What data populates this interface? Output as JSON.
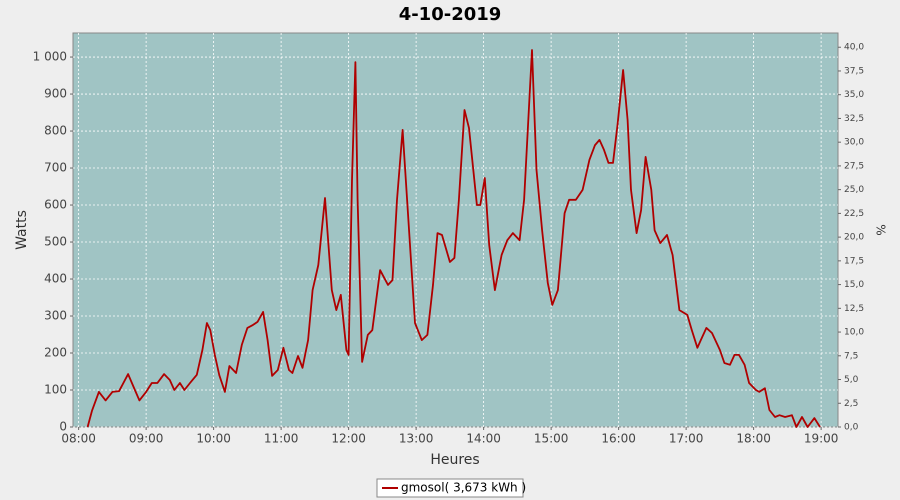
{
  "chart_data": {
    "type": "line",
    "title": "4-10-2019",
    "x_label": "Heures",
    "y_label": "Watts",
    "y2_label": "%",
    "x": [
      "08:08",
      "08:12",
      "08:18",
      "08:24",
      "08:30",
      "08:36",
      "08:44",
      "08:50",
      "08:54",
      "09:00",
      "09:05",
      "09:10",
      "09:16",
      "09:21",
      "09:25",
      "09:30",
      "09:34",
      "09:39",
      "09:45",
      "09:50",
      "09:54",
      "09:57",
      "10:01",
      "10:05",
      "10:10",
      "10:14",
      "10:20",
      "10:25",
      "10:30",
      "10:35",
      "10:39",
      "10:44",
      "10:48",
      "10:52",
      "10:57",
      "11:02",
      "11:07",
      "11:10",
      "11:15",
      "11:19",
      "11:24",
      "11:28",
      "11:33",
      "11:39",
      "11:45",
      "11:49",
      "11:53",
      "11:58",
      "12:00",
      "12:03",
      "12:06",
      "12:08",
      "12:12",
      "12:17",
      "12:21",
      "12:28",
      "12:35",
      "12:39",
      "12:43",
      "12:48",
      "12:52",
      "12:59",
      "13:05",
      "13:10",
      "13:15",
      "13:19",
      "13:23",
      "13:30",
      "13:34",
      "13:38",
      "13:43",
      "13:47",
      "13:54",
      "13:57",
      "14:01",
      "14:05",
      "14:10",
      "14:16",
      "14:21",
      "14:26",
      "14:32",
      "14:36",
      "14:43",
      "14:47",
      "14:52",
      "14:57",
      "15:01",
      "15:06",
      "15:12",
      "15:16",
      "15:22",
      "15:28",
      "15:34",
      "15:39",
      "15:43",
      "15:47",
      "15:51",
      "15:55",
      "15:59",
      "16:04",
      "16:08",
      "16:11",
      "16:16",
      "16:20",
      "16:24",
      "16:29",
      "16:32",
      "16:37",
      "16:43",
      "16:48",
      "16:54",
      "17:01",
      "17:05",
      "17:10",
      "17:13",
      "17:18",
      "17:23",
      "17:30",
      "17:34",
      "17:39",
      "17:43",
      "17:47",
      "17:52",
      "17:56",
      "18:02",
      "18:05",
      "18:10",
      "18:14",
      "18:19",
      "18:23",
      "18:28",
      "18:34",
      "18:38",
      "18:43",
      "18:48",
      "18:54",
      "18:59"
    ],
    "series": [
      {
        "name": "gmosol( 3,673 kWh )",
        "color": "#b00000",
        "values": [
          0,
          45,
          95,
          72,
          95,
          97,
          143,
          100,
          72,
          95,
          119,
          119,
          143,
          127,
          100,
          119,
          100,
          119,
          141,
          208,
          281,
          262,
          195,
          140,
          95,
          165,
          146,
          222,
          268,
          276,
          284,
          311,
          235,
          138,
          154,
          214,
          154,
          146,
          192,
          160,
          235,
          370,
          438,
          619,
          370,
          316,
          357,
          208,
          195,
          668,
          986,
          614,
          176,
          249,
          262,
          424,
          384,
          397,
          614,
          803,
          614,
          281,
          235,
          249,
          384,
          524,
          519,
          446,
          457,
          614,
          857,
          808,
          600,
          600,
          673,
          492,
          370,
          465,
          505,
          524,
          505,
          614,
          1019,
          695,
          532,
          389,
          330,
          370,
          578,
          614,
          614,
          641,
          722,
          762,
          776,
          749,
          714,
          714,
          816,
          965,
          830,
          641,
          524,
          586,
          730,
          641,
          532,
          497,
          519,
          465,
          316,
          303,
          262,
          214,
          235,
          268,
          254,
          208,
          173,
          168,
          195,
          195,
          168,
          119,
          100,
          95,
          105,
          46,
          27,
          32,
          27,
          32,
          0,
          27,
          0,
          24,
          0
        ]
      }
    ],
    "xlim": [
      "07:55",
      "19:15"
    ],
    "xticks": [
      "08:00",
      "09:00",
      "10:00",
      "11:00",
      "12:00",
      "13:00",
      "14:00",
      "15:00",
      "16:00",
      "17:00",
      "18:00",
      "19:00"
    ],
    "ylim": [
      0,
      1065
    ],
    "yticks": [
      0,
      100,
      200,
      300,
      400,
      500,
      600,
      700,
      800,
      900,
      {
        "value": 1000,
        "label": "1 000"
      }
    ],
    "y2lim": [
      0,
      41.5
    ],
    "y2ticks": [
      {
        "value": 0,
        "label": "0,0"
      },
      {
        "value": 2.5,
        "label": "2,5"
      },
      {
        "value": 5,
        "label": "5,0"
      },
      {
        "value": 7.5,
        "label": "7,5"
      },
      {
        "value": 10,
        "label": "10,0"
      },
      {
        "value": 12.5,
        "label": "12,5"
      },
      {
        "value": 15,
        "label": "15,0"
      },
      {
        "value": 17.5,
        "label": "17,5"
      },
      {
        "value": 20,
        "label": "20,0"
      },
      {
        "value": 22.5,
        "label": "22,5"
      },
      {
        "value": 25,
        "label": "25,0"
      },
      {
        "value": 27.5,
        "label": "27,5"
      },
      {
        "value": 30,
        "label": "30,0"
      },
      {
        "value": 32.5,
        "label": "32,5"
      },
      {
        "value": 35,
        "label": "35,0"
      },
      {
        "value": 37.5,
        "label": "37,5"
      },
      {
        "value": 40,
        "label": "40,0"
      }
    ],
    "grid": true,
    "plot_background": "#a0c4c4"
  }
}
